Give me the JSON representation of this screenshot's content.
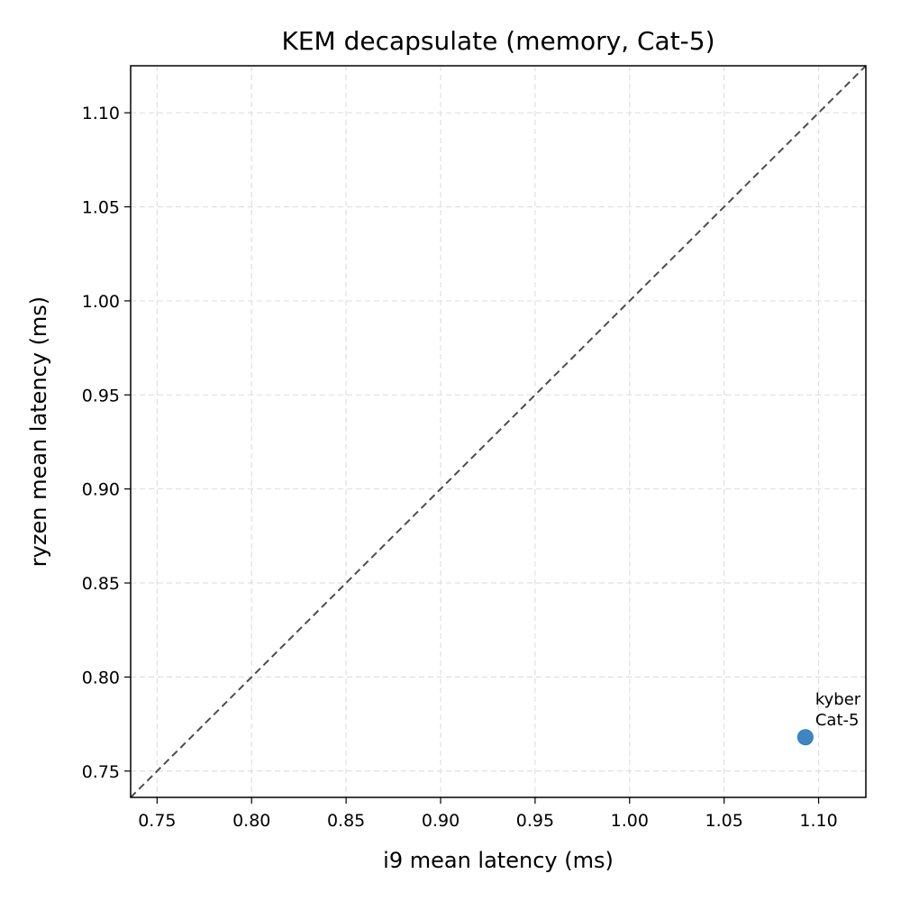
{
  "chart_data": {
    "type": "scatter",
    "title": "KEM decapsulate (memory, Cat-5)",
    "xlabel": "i9 mean latency (ms)",
    "ylabel": "ryzen mean latency (ms)",
    "xlim": [
      0.736,
      1.125
    ],
    "ylim": [
      0.736,
      1.125
    ],
    "x_ticks": [
      "0.75",
      "0.80",
      "0.85",
      "0.90",
      "0.95",
      "1.00",
      "1.05",
      "1.10"
    ],
    "y_ticks": [
      "0.75",
      "0.80",
      "0.85",
      "0.90",
      "0.95",
      "1.00",
      "1.05",
      "1.10"
    ],
    "grid": true,
    "reference_line": "y = x",
    "points": [
      {
        "x": 1.093,
        "y": 0.768,
        "label_lines": [
          "kyber",
          "Cat-5"
        ]
      }
    ],
    "colors": {
      "point": "#2f7bbd",
      "reference_line": "#4d4d4d",
      "grid": "#e0e0e0"
    }
  }
}
